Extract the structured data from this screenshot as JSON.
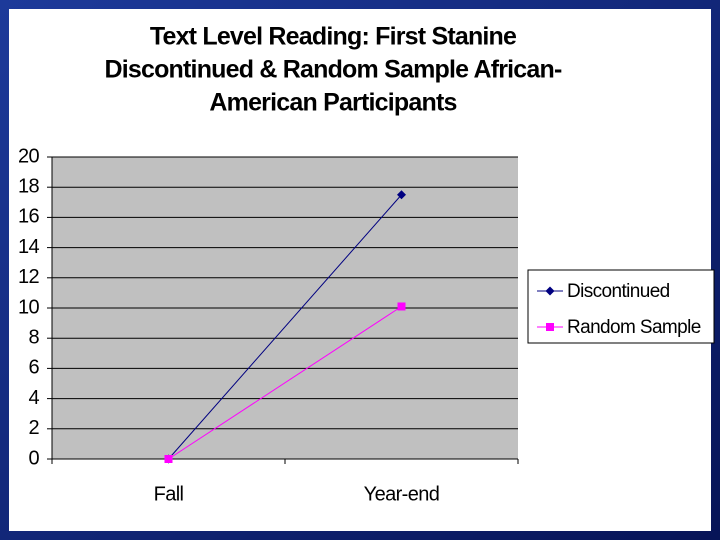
{
  "chart_data": {
    "type": "line",
    "title": [
      "Text Level Reading: First Stanine",
      "Discontinued & Random Sample African-",
      "American Participants"
    ],
    "categories": [
      "Fall",
      "Year-end"
    ],
    "series": [
      {
        "name": "Discontinued",
        "color": "#000080",
        "marker": "diamond",
        "values": [
          0,
          17.5
        ]
      },
      {
        "name": "Random Sample",
        "color": "#ff00ff",
        "marker": "square",
        "values": [
          0,
          10.1
        ]
      }
    ],
    "ylim": [
      0,
      20
    ],
    "yticks": [
      0,
      2,
      4,
      6,
      8,
      10,
      12,
      14,
      16,
      18,
      20
    ],
    "grid": true,
    "legend": "right"
  }
}
